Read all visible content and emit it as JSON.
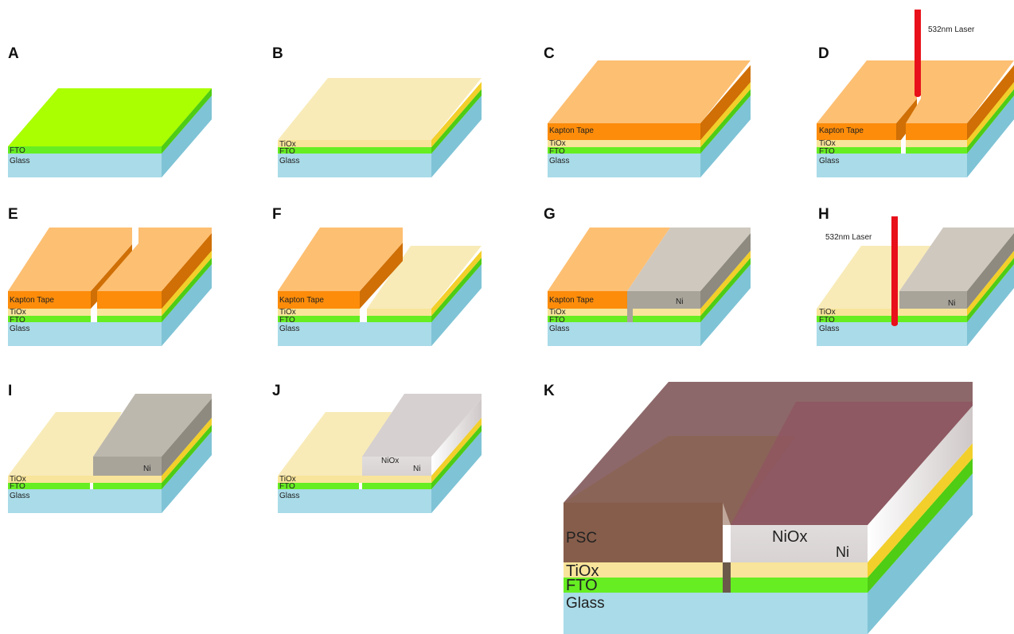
{
  "panels": {
    "A": {
      "letter": "A",
      "fto": "FTO",
      "glass": "Glass"
    },
    "B": {
      "letter": "B",
      "tiox": "TiOx",
      "fto": "FTO",
      "glass": "Glass"
    },
    "C": {
      "letter": "C",
      "kapton": "Kapton Tape",
      "tiox": "TiOx",
      "fto": "FTO",
      "glass": "Glass"
    },
    "D": {
      "letter": "D",
      "kapton": "Kapton Tape",
      "tiox": "TiOx",
      "fto": "FTO",
      "glass": "Glass",
      "laser": "532nm Laser"
    },
    "E": {
      "letter": "E",
      "kapton": "Kapton Tape",
      "tiox": "TiOx",
      "fto": "FTO",
      "glass": "Glass"
    },
    "F": {
      "letter": "F",
      "kapton": "Kapton Tape",
      "tiox": "TiOx",
      "fto": "FTO",
      "glass": "Glass"
    },
    "G": {
      "letter": "G",
      "kapton": "Kapton Tape",
      "ni": "Ni",
      "tiox": "TiOx",
      "fto": "FTO",
      "glass": "Glass"
    },
    "H": {
      "letter": "H",
      "laser": "532nm Laser",
      "ni": "Ni",
      "tiox": "TiOx",
      "fto": "FTO",
      "glass": "Glass"
    },
    "I": {
      "letter": "I",
      "ni": "Ni",
      "tiox": "TiOx",
      "fto": "FTO",
      "glass": "Glass"
    },
    "J": {
      "letter": "J",
      "niox": "NiOx",
      "ni": "Ni",
      "tiox": "TiOx",
      "fto": "FTO",
      "glass": "Glass"
    },
    "K": {
      "letter": "K",
      "psc": "PSC",
      "niox": "NiOx",
      "ni": "Ni",
      "tiox": "TiOx",
      "fto": "FTO",
      "glass": "Glass"
    }
  },
  "colors": {
    "glass": "#a9dbe8",
    "fto": "#66ee22",
    "tiox": "#f8e49a",
    "kapton": "#fc8c0a",
    "ni": "#a8a49a",
    "niox": "#f0ecec",
    "psc": "#7a4a4a",
    "laser": "#e8101a"
  }
}
